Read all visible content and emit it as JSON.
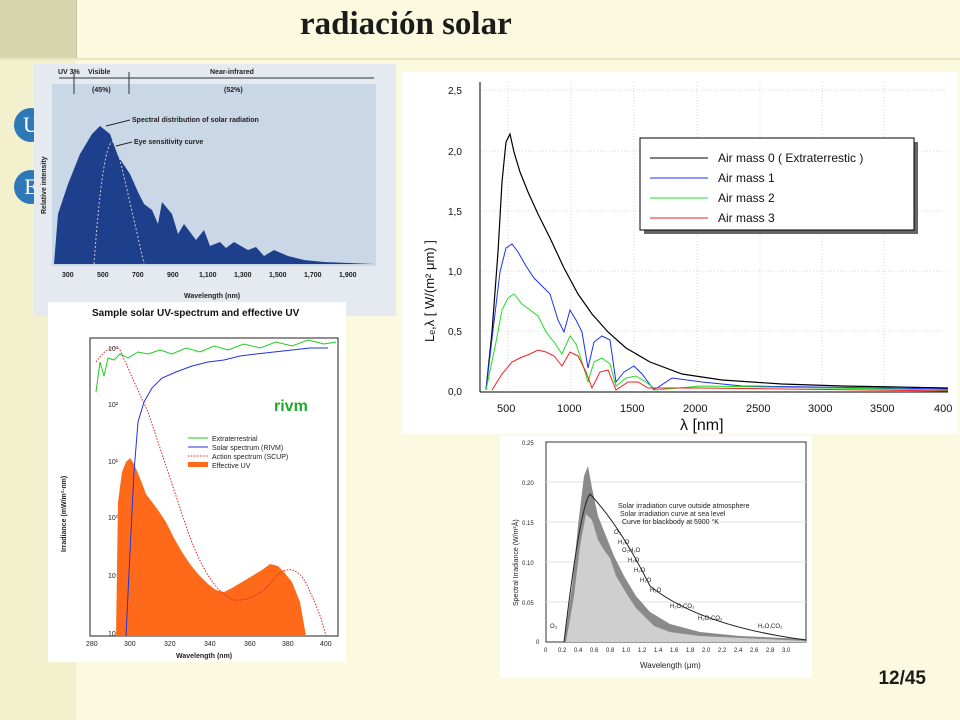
{
  "slide": {
    "title": "radiación solar",
    "page": "12/45",
    "bullets": [
      "U",
      "E"
    ]
  },
  "fig1": {
    "bands": [
      "UV 3%",
      "Visible",
      "(45%)",
      "Near-infrared",
      "(52%)"
    ],
    "curves": [
      "Spectral distribution of solar radiation",
      "Eye sensitivity curve"
    ],
    "ylabel": "Relative intensity",
    "xlabel": "Wavelength (nm)",
    "ticks": [
      "300",
      "500",
      "700",
      "900",
      "1,100",
      "1,300",
      "1,500",
      "1,700",
      "1,900"
    ]
  },
  "fig2": {
    "title": "Sample solar UV-spectrum and effective UV",
    "brand": "rivm",
    "ylabel": "Irradiance (mW/m²·nm)",
    "xlabel": "Wavelength (nm)",
    "yticks": [
      "10³",
      "10²",
      "10¹",
      "10⁰",
      "10⁻¹",
      "10⁻²"
    ],
    "xticks": [
      "280",
      "300",
      "320",
      "340",
      "360",
      "380",
      "400"
    ],
    "legend": [
      "Extraterrestrial",
      "Solar spectrum (RIVM)",
      "Action spectrum (SCUP)",
      "Effective UV"
    ],
    "colors": {
      "extra": "#22cc22",
      "solar": "#2233dd",
      "action": "#dd2222",
      "effective": "#ff6a1a"
    }
  },
  "fig3": {
    "yticks": [
      "2,5",
      "2,0",
      "1,5",
      "1,0",
      "0,5",
      "0,0"
    ],
    "xticks": [
      "500",
      "1000",
      "1500",
      "2000",
      "2500",
      "3000",
      "3500",
      "400"
    ],
    "ylabel": "Lₑ,λ  [ W/(m² μm) ]",
    "xlabel": "λ [nm]",
    "legend": [
      "Air mass 0 ( Extraterrestic )",
      "Air mass 1",
      "Air mass 2",
      "Air mass 3"
    ],
    "colors": [
      "#000000",
      "#1a33ee",
      "#22dd22",
      "#ee2222"
    ]
  },
  "fig4": {
    "yticks": [
      "0.25",
      "0.20",
      "0.15",
      "0.10",
      "0.05",
      "0"
    ],
    "xticks": [
      "0",
      "0.2",
      "0.4",
      "0.6",
      "0.8",
      "1.0",
      "1.2",
      "1.4",
      "1.6",
      "1.8",
      "2.0",
      "2.2",
      "2.4",
      "2.6",
      "2.8",
      "3.0"
    ],
    "ylabel": "Spectral Irradiance (W/m²Å)",
    "xlabel": "Wavelength (μm)",
    "legend": [
      "Solar irradiation curve outside atmosphere",
      "Solar irradiation curve at sea level",
      "Curve for blackbody at 5900 °K"
    ],
    "absorbers": [
      "O₃",
      "H₂O",
      "O₂H₂O",
      "H₂O",
      "H₂O",
      "H₂O",
      "H₂O",
      "H₂O,CO₂",
      "H₂O,CO₂",
      "H₂O,CO₂",
      "O₃"
    ]
  }
}
